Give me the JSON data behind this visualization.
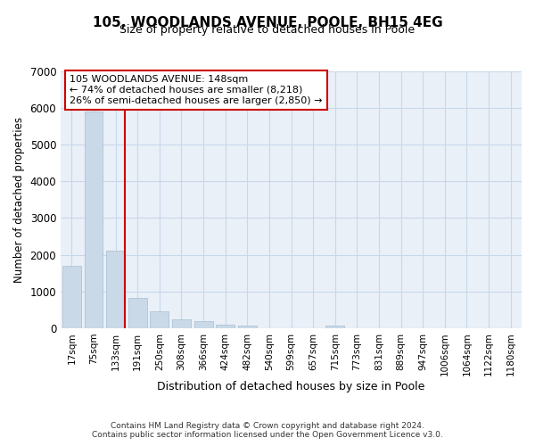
{
  "title": "105, WOODLANDS AVENUE, POOLE, BH15 4EG",
  "subtitle": "Size of property relative to detached houses in Poole",
  "xlabel": "Distribution of detached houses by size in Poole",
  "ylabel": "Number of detached properties",
  "categories": [
    "17sqm",
    "75sqm",
    "133sqm",
    "191sqm",
    "250sqm",
    "308sqm",
    "366sqm",
    "424sqm",
    "482sqm",
    "540sqm",
    "599sqm",
    "657sqm",
    "715sqm",
    "773sqm",
    "831sqm",
    "889sqm",
    "947sqm",
    "1006sqm",
    "1064sqm",
    "1122sqm",
    "1180sqm"
  ],
  "values": [
    1700,
    5900,
    2100,
    820,
    450,
    240,
    200,
    100,
    70,
    0,
    0,
    0,
    60,
    0,
    0,
    0,
    0,
    0,
    0,
    0,
    0
  ],
  "bar_color": "#c9d9e8",
  "bar_edge_color": "#a8bece",
  "annotation_text_line1": "105 WOODLANDS AVENUE: 148sqm",
  "annotation_text_line2": "← 74% of detached houses are smaller (8,218)",
  "annotation_text_line3": "26% of semi-detached houses are larger (2,850) →",
  "box_color": "#cc0000",
  "line_color": "#cc0000",
  "ylim": [
    0,
    7000
  ],
  "yticks": [
    0,
    1000,
    2000,
    3000,
    4000,
    5000,
    6000,
    7000
  ],
  "grid_color": "#c8d8e8",
  "bg_color": "#eaf0f8",
  "footnote1": "Contains HM Land Registry data © Crown copyright and database right 2024.",
  "footnote2": "Contains public sector information licensed under the Open Government Licence v3.0."
}
